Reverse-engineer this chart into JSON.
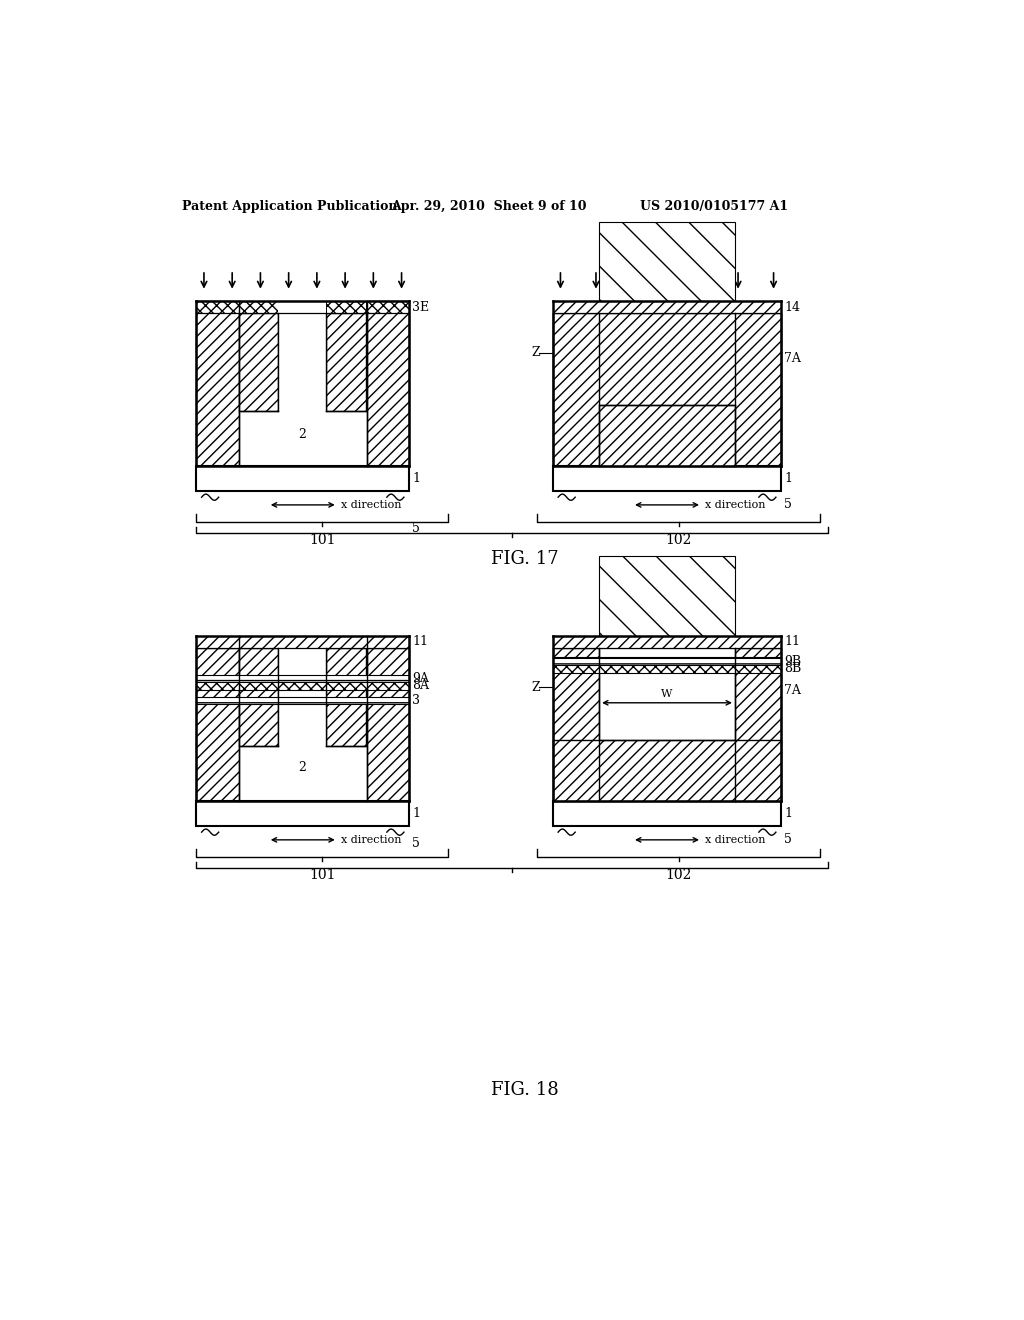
{
  "bg_color": "#ffffff",
  "header_left": "Patent Application Publication",
  "header_mid": "Apr. 29, 2010  Sheet 9 of 10",
  "header_right": "US 2010/0105177 A1",
  "fig17_label": "FIG. 17",
  "fig18_label": "FIG. 18"
}
